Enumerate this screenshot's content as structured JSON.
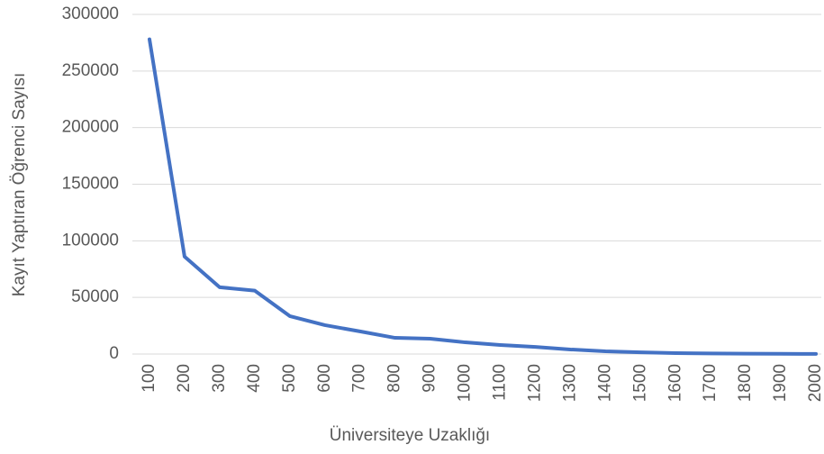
{
  "chart_data": {
    "type": "line",
    "xlabel": "Üniversiteye Uzaklığı",
    "ylabel": "Kayıt Yaptıran Öğrenci Sayısı",
    "categories": [
      "100",
      "200",
      "300",
      "400",
      "500",
      "600",
      "700",
      "800",
      "900",
      "1000",
      "1100",
      "1200",
      "1300",
      "1400",
      "1500",
      "1600",
      "1700",
      "1800",
      "1900",
      "2000"
    ],
    "series": [
      {
        "name": "Kayıt Yaptıran Öğrenci Sayısı",
        "color": "#4472c4",
        "values": [
          278000,
          86000,
          59000,
          56000,
          33500,
          25500,
          20000,
          14300,
          13500,
          10300,
          8000,
          6300,
          4000,
          2400,
          1500,
          800,
          500,
          300,
          200,
          100
        ]
      }
    ],
    "ylim": [
      0,
      300000
    ],
    "yticks": [
      0,
      50000,
      100000,
      150000,
      200000,
      250000,
      300000
    ],
    "grid": true
  }
}
